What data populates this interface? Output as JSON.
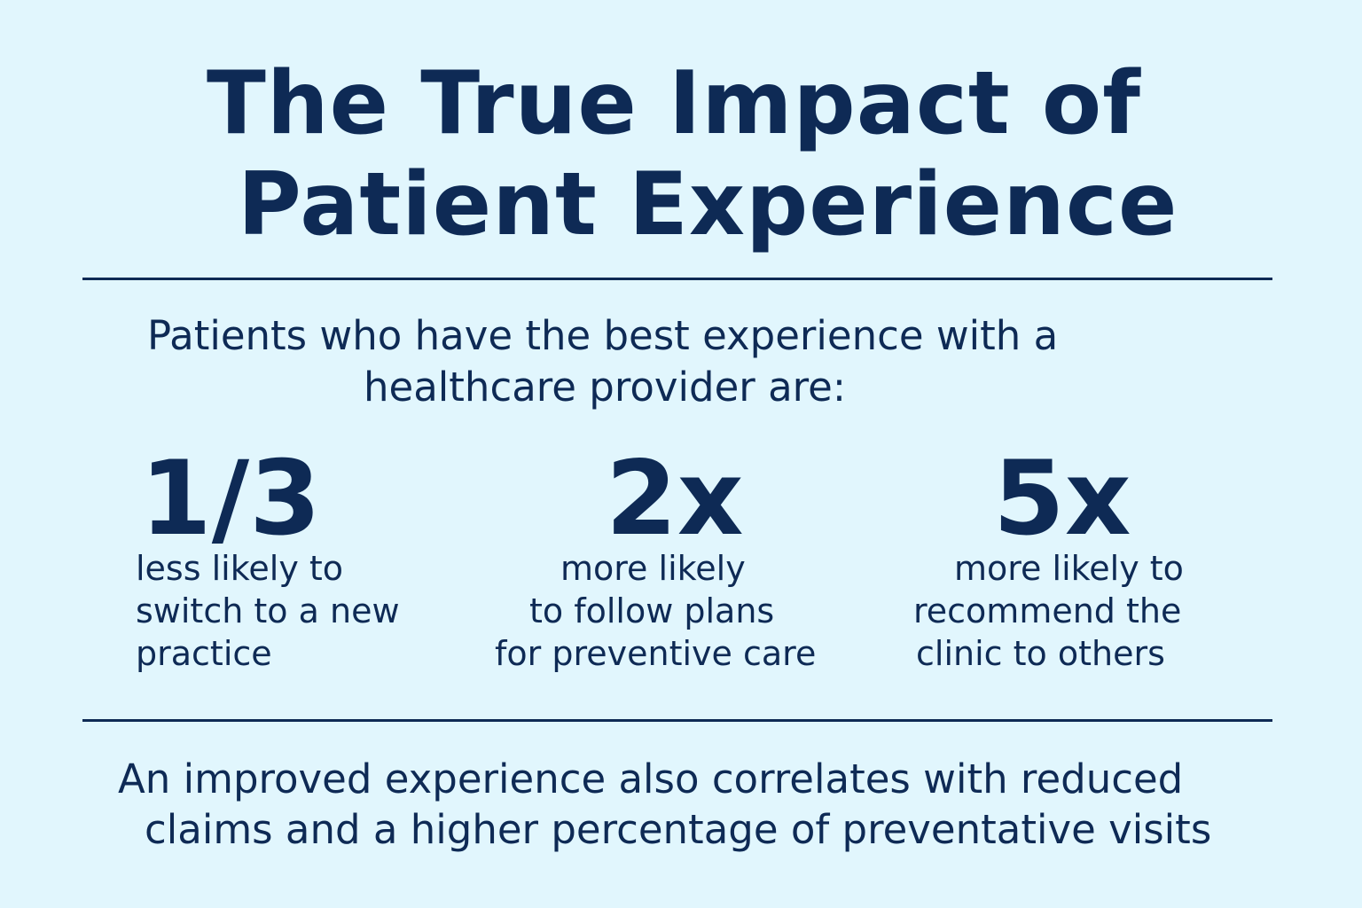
{
  "title": {
    "line1": "The True Impact of",
    "line2": "Patient Experience"
  },
  "intro": {
    "line1": "Patients who have the best experience with a",
    "line2": "healthcare provider are:"
  },
  "stats": [
    {
      "value": "1/3",
      "lines": [
        "less likely to",
        "switch to a new",
        "practice"
      ]
    },
    {
      "value": "2x",
      "lines": [
        "more likely",
        "to follow plans",
        "for preventive care"
      ]
    },
    {
      "value": "5x",
      "lines": [
        "more likely to",
        "recommend the",
        "clinic to others"
      ]
    }
  ],
  "footer": {
    "line1": "An improved experience also correlates with reduced",
    "line2": "claims and a higher percentage of preventative visits"
  },
  "colors": {
    "background": "#e1f6fd",
    "text": "#0e2a55"
  }
}
